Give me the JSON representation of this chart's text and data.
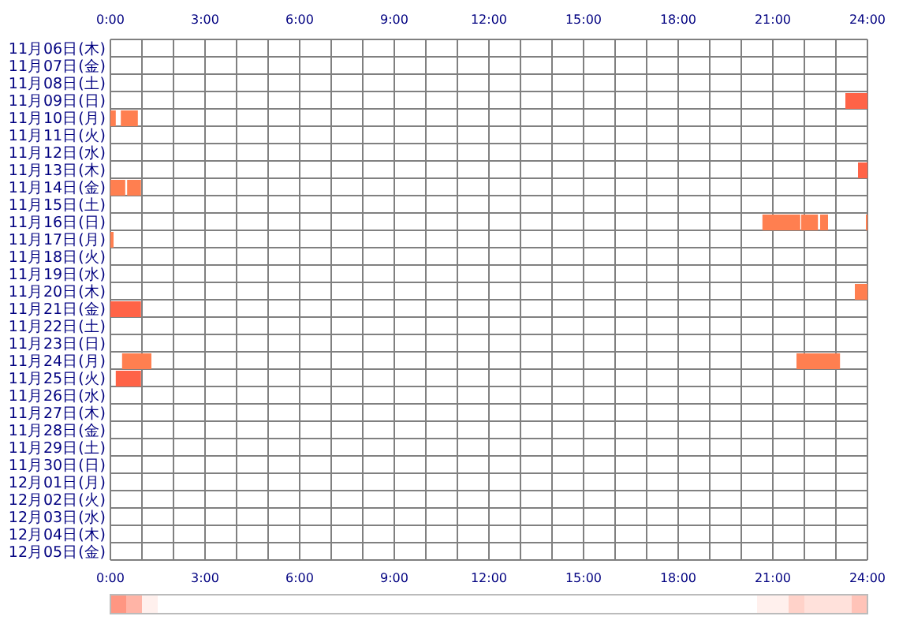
{
  "chart_data": [
    {
      "type": "bar",
      "orientation": "horizontal",
      "grid": true,
      "categories": [
        "11月06日(木)",
        "11月07日(金)",
        "11月08日(土)",
        "11月09日(日)",
        "11月10日(月)",
        "11月11日(火)",
        "11月12日(水)",
        "11月13日(木)",
        "11月14日(金)",
        "11月15日(土)",
        "11月16日(日)",
        "11月17日(月)",
        "11月18日(火)",
        "11月19日(水)",
        "11月20日(木)",
        "11月21日(金)",
        "11月22日(土)",
        "11月23日(日)",
        "11月24日(月)",
        "11月25日(火)",
        "11月26日(水)",
        "11月27日(木)",
        "11月28日(金)",
        "11月29日(土)",
        "11月30日(日)",
        "12月01日(月)",
        "12月02日(火)",
        "12月03日(水)",
        "12月04日(木)",
        "12月05日(金)"
      ],
      "xlim": [
        0,
        24
      ],
      "xticks": [
        {
          "value": 0,
          "label": "0:00"
        },
        {
          "value": 1,
          "label": null
        },
        {
          "value": 2,
          "label": null
        },
        {
          "value": 3,
          "label": "3:00"
        },
        {
          "value": 4,
          "label": null
        },
        {
          "value": 5,
          "label": null
        },
        {
          "value": 6,
          "label": "6:00"
        },
        {
          "value": 7,
          "label": null
        },
        {
          "value": 8,
          "label": null
        },
        {
          "value": 9,
          "label": "9:00"
        },
        {
          "value": 10,
          "label": null
        },
        {
          "value": 11,
          "label": null
        },
        {
          "value": 12,
          "label": "12:00"
        },
        {
          "value": 13,
          "label": null
        },
        {
          "value": 14,
          "label": null
        },
        {
          "value": 15,
          "label": "15:00"
        },
        {
          "value": 16,
          "label": null
        },
        {
          "value": 17,
          "label": null
        },
        {
          "value": 18,
          "label": "18:00"
        },
        {
          "value": 19,
          "label": null
        },
        {
          "value": 20,
          "label": null
        },
        {
          "value": 21,
          "label": "21:00"
        },
        {
          "value": 22,
          "label": null
        },
        {
          "value": 23,
          "label": null
        },
        {
          "value": 24,
          "label": "24:00"
        }
      ],
      "series": [
        {
          "base": [
            null,
            null,
            null,
            23.3,
            0,
            null,
            null,
            23.7,
            0,
            null,
            20.67,
            0,
            null,
            null,
            23.6,
            0,
            null,
            null,
            0.37,
            0.17,
            null,
            null,
            null,
            null,
            null,
            null,
            null,
            null,
            null,
            null
          ],
          "values": [
            null,
            null,
            null,
            0.7,
            0.17,
            null,
            null,
            0.3,
            0.47,
            null,
            1.2,
            0.1,
            null,
            null,
            0.4,
            0.97,
            null,
            null,
            0.93,
            0.8,
            null,
            null,
            null,
            null,
            null,
            null,
            null,
            null,
            null,
            null
          ],
          "colors": [
            null,
            null,
            null,
            "#ff6347",
            "#ff7f50",
            null,
            null,
            "#ff6347",
            "#ff7f50",
            null,
            "#ff7f50",
            "#ff7f50",
            null,
            null,
            "#ff7f50",
            "#ff6347",
            null,
            null,
            "#ff7f50",
            "#ff6347",
            null,
            null,
            null,
            null,
            null,
            null,
            null,
            null,
            null,
            null
          ]
        },
        {
          "base": [
            null,
            null,
            null,
            null,
            0.33,
            null,
            null,
            null,
            0.53,
            null,
            21.9,
            null,
            null,
            null,
            null,
            null,
            null,
            null,
            21.75,
            null,
            null,
            null,
            null,
            null,
            null,
            null,
            null,
            null,
            null,
            null
          ],
          "values": [
            null,
            null,
            null,
            null,
            0.54,
            null,
            null,
            null,
            0.44,
            null,
            0.53,
            null,
            null,
            null,
            null,
            null,
            null,
            null,
            1.38,
            null,
            null,
            null,
            null,
            null,
            null,
            null,
            null,
            null,
            null,
            null
          ],
          "colors": [
            null,
            null,
            null,
            null,
            "#ff7f50",
            null,
            null,
            null,
            "#ff7f50",
            null,
            "#ff7f50",
            null,
            null,
            null,
            null,
            null,
            null,
            null,
            "#ff7f50",
            null,
            null,
            null,
            null,
            null,
            null,
            null,
            null,
            null,
            null,
            null
          ]
        },
        {
          "base": [
            null,
            null,
            null,
            null,
            null,
            null,
            null,
            null,
            null,
            null,
            22.5,
            null,
            null,
            null,
            null,
            null,
            null,
            null,
            null,
            null,
            null,
            null,
            null,
            null,
            null,
            null,
            null,
            null,
            null,
            null
          ],
          "values": [
            null,
            null,
            null,
            null,
            null,
            null,
            null,
            null,
            null,
            null,
            0.25,
            null,
            null,
            null,
            null,
            null,
            null,
            null,
            null,
            null,
            null,
            null,
            null,
            null,
            null,
            null,
            null,
            null,
            null,
            null
          ],
          "colors": [
            null,
            null,
            null,
            null,
            null,
            null,
            null,
            null,
            null,
            null,
            "#ff7f50",
            null,
            null,
            null,
            null,
            null,
            null,
            null,
            null,
            null,
            null,
            null,
            null,
            null,
            null,
            null,
            null,
            null,
            null,
            null
          ]
        },
        {
          "base": [
            null,
            null,
            null,
            null,
            null,
            null,
            null,
            null,
            null,
            null,
            23.95,
            null,
            null,
            null,
            null,
            null,
            null,
            null,
            null,
            null,
            null,
            null,
            null,
            null,
            null,
            null,
            null,
            null,
            null,
            null
          ],
          "values": [
            null,
            null,
            null,
            null,
            null,
            null,
            null,
            null,
            null,
            null,
            0.05,
            null,
            null,
            null,
            null,
            null,
            null,
            null,
            null,
            null,
            null,
            null,
            null,
            null,
            null,
            null,
            null,
            null,
            null,
            null
          ],
          "colors": [
            null,
            null,
            null,
            null,
            null,
            null,
            null,
            null,
            null,
            null,
            "#ff7f50",
            null,
            null,
            null,
            null,
            null,
            null,
            null,
            null,
            null,
            null,
            null,
            null,
            null,
            null,
            null,
            null,
            null,
            null,
            null
          ]
        }
      ],
      "x2lim": [
        0,
        24
      ],
      "x2ticks": [
        {
          "value": 0,
          "label": "0:00"
        },
        {
          "value": 3,
          "label": "3:00"
        },
        {
          "value": 6,
          "label": "6:00"
        },
        {
          "value": 9,
          "label": "9:00"
        },
        {
          "value": 12,
          "label": "12:00"
        },
        {
          "value": 15,
          "label": "15:00"
        },
        {
          "value": 18,
          "label": "18:00"
        },
        {
          "value": 21,
          "label": "21:00"
        },
        {
          "value": 24,
          "label": "24:00"
        }
      ]
    }
  ]
}
